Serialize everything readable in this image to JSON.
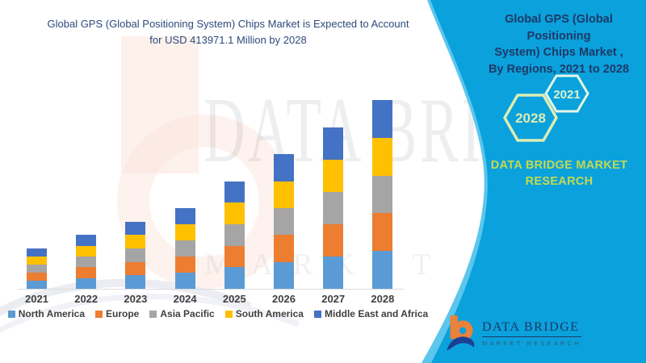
{
  "left_title_lines": [
    "Global GPS (Global Positioning System) Chips Market is Expected to Account",
    "for USD 413971.1 Million by 2028"
  ],
  "right_panel": {
    "title_lines": [
      "Global GPS (Global Positioning",
      "System) Chips Market ,",
      "By Regions, 2021 to 2028"
    ],
    "hexagons": {
      "back_year": "2021",
      "front_year": "2028"
    },
    "brand_lines": [
      "DATA BRIDGE MARKET",
      "RESEARCH"
    ],
    "colors": {
      "panel_blue": "#0aa1dd",
      "panel_edge_blue": "#5cc6ec",
      "title_navy": "#1e3a66",
      "brand_green": "#c6d94e",
      "hex_front_stroke": "#dcedb4",
      "hex_back_stroke": "#e4f6e5"
    }
  },
  "logo": {
    "name_top": "DATA BRIDGE",
    "name_bottom": "MARKET RESEARCH",
    "icon_orange": "#e8823c",
    "icon_blue": "#1c3f94"
  },
  "watermark": {
    "line1": "DATA BRIDGE",
    "line2": "MARKET RESEARCH"
  },
  "chart_data": {
    "type": "bar",
    "stacked": true,
    "title": "Global GPS (Global Positioning System) Chips Market is Expected to Account for USD 413971.1 Million by 2028",
    "unit": "USD Million",
    "xlabel": "",
    "ylabel": "",
    "ylim": [
      0,
      450000
    ],
    "grid": false,
    "legend_position": "bottom",
    "categories": [
      "2021",
      "2022",
      "2023",
      "2024",
      "2025",
      "2026",
      "2027",
      "2028"
    ],
    "series": [
      {
        "name": "North America",
        "color": "#5B9BD5",
        "values": [
          17700,
          23600,
          29500,
          35400,
          47200,
          59000,
          70800,
          82794.2
        ]
      },
      {
        "name": "Europe",
        "color": "#ED7D31",
        "values": [
          17700,
          23600,
          29500,
          35400,
          47200,
          59000,
          70800,
          82794.2
        ]
      },
      {
        "name": "Asia Pacific",
        "color": "#A5A5A5",
        "values": [
          17700,
          23600,
          29500,
          35400,
          47200,
          59000,
          70800,
          82794.2
        ]
      },
      {
        "name": "South America",
        "color": "#FFC000",
        "values": [
          17700,
          23600,
          29500,
          35400,
          47200,
          59000,
          70800,
          82794.2
        ]
      },
      {
        "name": "Middle East and Africa",
        "color": "#4472C4",
        "values": [
          17700,
          23600,
          29500,
          35400,
          47200,
          59000,
          70800,
          82794.3
        ]
      }
    ],
    "totals": [
      88500,
      118000,
      147500,
      177000,
      236000,
      295000,
      354000,
      413971.1
    ],
    "annotated_total_2028": 413971.1
  }
}
